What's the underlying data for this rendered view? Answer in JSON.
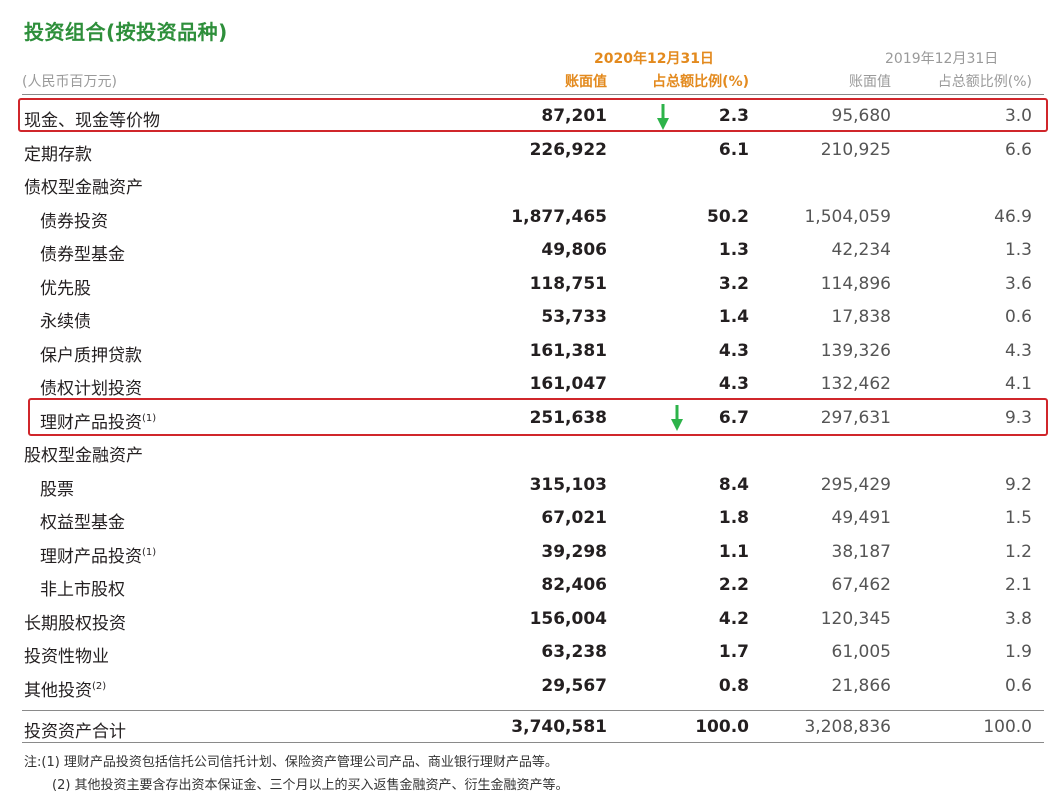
{
  "title": "投资组合(按投资品种)",
  "unit": "(人民币百万元)",
  "header": {
    "date_2020": "2020年12月31日",
    "date_2019": "2019年12月31日",
    "book_value_2020": "账面值",
    "ratio_2020": "占总额比例(%)",
    "book_value_2019": "账面值",
    "ratio_2019": "占总额比例(%)"
  },
  "rows": [
    {
      "label": "现金、现金等价物",
      "sup": "",
      "v2020": "87,201",
      "p2020": "2.3",
      "v2019": "95,680",
      "p2019": "3.0"
    },
    {
      "label": "定期存款",
      "sup": "",
      "v2020": "226,922",
      "p2020": "6.1",
      "v2019": "210,925",
      "p2019": "6.6"
    },
    {
      "label": "债权型金融资产",
      "sup": "",
      "v2020": "",
      "p2020": "",
      "v2019": "",
      "p2019": ""
    },
    {
      "label": "债券投资",
      "sup": "",
      "v2020": "1,877,465",
      "p2020": "50.2",
      "v2019": "1,504,059",
      "p2019": "46.9"
    },
    {
      "label": "债券型基金",
      "sup": "",
      "v2020": "49,806",
      "p2020": "1.3",
      "v2019": "42,234",
      "p2019": "1.3"
    },
    {
      "label": "优先股",
      "sup": "",
      "v2020": "118,751",
      "p2020": "3.2",
      "v2019": "114,896",
      "p2019": "3.6"
    },
    {
      "label": "永续债",
      "sup": "",
      "v2020": "53,733",
      "p2020": "1.4",
      "v2019": "17,838",
      "p2019": "0.6"
    },
    {
      "label": "保户质押贷款",
      "sup": "",
      "v2020": "161,381",
      "p2020": "4.3",
      "v2019": "139,326",
      "p2019": "4.3"
    },
    {
      "label": "债权计划投资",
      "sup": "",
      "v2020": "161,047",
      "p2020": "4.3",
      "v2019": "132,462",
      "p2019": "4.1"
    },
    {
      "label": "理财产品投资",
      "sup": "(1)",
      "v2020": "251,638",
      "p2020": "6.7",
      "v2019": "297,631",
      "p2019": "9.3"
    },
    {
      "label": "股权型金融资产",
      "sup": "",
      "v2020": "",
      "p2020": "",
      "v2019": "",
      "p2019": ""
    },
    {
      "label": "股票",
      "sup": "",
      "v2020": "315,103",
      "p2020": "8.4",
      "v2019": "295,429",
      "p2019": "9.2"
    },
    {
      "label": "权益型基金",
      "sup": "",
      "v2020": "67,021",
      "p2020": "1.8",
      "v2019": "49,491",
      "p2019": "1.5"
    },
    {
      "label": "理财产品投资",
      "sup": "(1)",
      "v2020": "39,298",
      "p2020": "1.1",
      "v2019": "38,187",
      "p2019": "1.2"
    },
    {
      "label": "非上市股权",
      "sup": "",
      "v2020": "82,406",
      "p2020": "2.2",
      "v2019": "67,462",
      "p2019": "2.1"
    },
    {
      "label": "长期股权投资",
      "sup": "",
      "v2020": "156,004",
      "p2020": "4.2",
      "v2019": "120,345",
      "p2019": "3.8"
    },
    {
      "label": "投资性物业",
      "sup": "",
      "v2020": "63,238",
      "p2020": "1.7",
      "v2019": "61,005",
      "p2019": "1.9"
    },
    {
      "label": "其他投资",
      "sup": "(2)",
      "v2020": "29,567",
      "p2020": "0.8",
      "v2019": "21,866",
      "p2019": "0.6"
    }
  ],
  "total": {
    "label": "投资资产合计",
    "v2020": "3,740,581",
    "p2020": "100.0",
    "v2019": "3,208,836",
    "p2019": "100.0"
  },
  "notes": [
    "注:(1) 理财产品投资包括信托公司信托计划、保险资产管理公司产品、商业银行理财产品等。",
    "(2) 其他投资主要含存出资本保证金、三个月以上的买入返售金融资产、衍生金融资产等。"
  ],
  "colors": {
    "title": "#2e8f3b",
    "header_2020": "#e38a1e",
    "highlight_box": "#d0262b",
    "arrow": "#2db34a"
  }
}
